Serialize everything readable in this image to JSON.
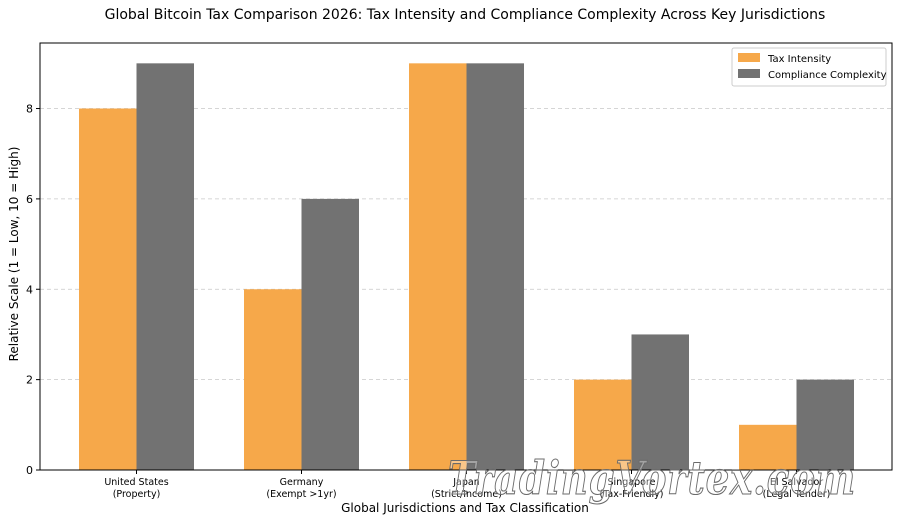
{
  "chart_data": {
    "type": "bar",
    "title": "Global Bitcoin Tax Comparison 2026: Tax Intensity and Compliance Complexity Across Key Jurisdictions",
    "xlabel": "Global Jurisdictions and Tax Classification",
    "ylabel": "Relative Scale (1 = Low, 10 = High)",
    "ylim": [
      0,
      9.45
    ],
    "yticks": [
      0,
      2,
      4,
      6,
      8
    ],
    "grid": "horizontal dashed",
    "legend_position": "top-right",
    "categories": [
      [
        "United States",
        "(Property)"
      ],
      [
        "Germany",
        "(Exempt >1yr)"
      ],
      [
        "Japan",
        "(Strict/Income)"
      ],
      [
        "Singapore",
        "(Tax-Friendly)"
      ],
      [
        "El Salvador",
        "(Legal Tender)"
      ]
    ],
    "series": [
      {
        "name": "Tax Intensity",
        "color": "#f6a84a",
        "values": [
          8,
          4,
          9,
          2,
          1
        ]
      },
      {
        "name": "Compliance Complexity",
        "color": "#727272",
        "values": [
          9,
          6,
          9,
          3,
          2
        ]
      }
    ]
  },
  "watermark": "TradingVortex.com"
}
